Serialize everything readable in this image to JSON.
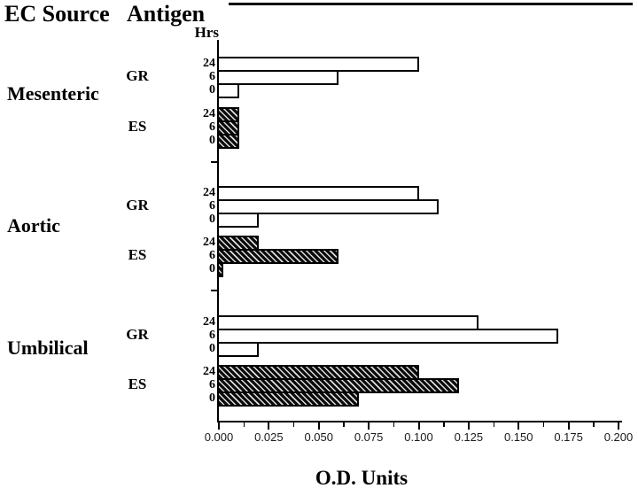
{
  "headers": {
    "ec_source": "EC Source",
    "antigen": "Antigen",
    "hrs": "Hrs"
  },
  "chart_data": {
    "type": "bar",
    "orientation": "horizontal",
    "title": "",
    "xlabel": "O.D. Units",
    "ylabel": "",
    "xlim": [
      0,
      0.2
    ],
    "x_tick_labels": [
      "0.000",
      "0.025",
      "0.050",
      "0.075",
      "0.100",
      "0.125",
      "0.150",
      "0.175",
      "0.200"
    ],
    "minor_ticks": "one between each pair of major ticks",
    "grid": "off",
    "hours": [
      "24",
      "6",
      "0"
    ],
    "groups": [
      {
        "ec_source": "Mesenteric",
        "series": [
          {
            "antigen": "GR",
            "style": "open",
            "values": [
              0.1,
              0.06,
              0.01
            ]
          },
          {
            "antigen": "ES",
            "style": "hatched",
            "values": [
              0.01,
              0.01,
              0.01
            ]
          }
        ]
      },
      {
        "ec_source": "Aortic",
        "series": [
          {
            "antigen": "GR",
            "style": "open",
            "values": [
              0.1,
              0.11,
              0.02
            ]
          },
          {
            "antigen": "ES",
            "style": "hatched",
            "values": [
              0.02,
              0.06,
              0.002
            ]
          }
        ]
      },
      {
        "ec_source": "Umbilical",
        "series": [
          {
            "antigen": "GR",
            "style": "open",
            "values": [
              0.13,
              0.17,
              0.02
            ]
          },
          {
            "antigen": "ES",
            "style": "hatched",
            "values": [
              0.1,
              0.12,
              0.07
            ]
          }
        ]
      }
    ]
  },
  "colors": {
    "ink": "#000000",
    "open_bar_fill": "#ffffff",
    "hatch_dark": "#0b0b0b",
    "hatch_light": "#dddddd",
    "background": "#ffffff"
  }
}
